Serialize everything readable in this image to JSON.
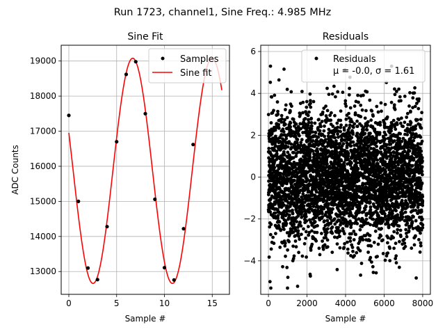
{
  "figure": {
    "suptitle": "Run 1723, channel1, Sine Freq.: 4.985 MHz"
  },
  "chart_data": [
    {
      "type": "line",
      "title": "Sine Fit",
      "xlabel": "Sample #",
      "ylabel": "ADC Counts",
      "xlim": [
        -0.8,
        16.8
      ],
      "ylim": [
        12350,
        19450
      ],
      "grid": true,
      "xticks": [
        0,
        5,
        10,
        15
      ],
      "yticks": [
        13000,
        14000,
        15000,
        16000,
        17000,
        18000,
        19000
      ],
      "legend": {
        "placement": "top-right",
        "entries": [
          "Samples",
          "Sine fit"
        ]
      },
      "colors": {
        "samples": "#000000",
        "fit": "#ff0000"
      },
      "series": [
        {
          "name": "Samples",
          "kind": "scatter",
          "x": [
            0,
            1,
            2,
            3,
            4,
            5,
            6,
            7,
            8,
            9,
            10,
            11,
            12,
            13
          ],
          "y": [
            17450,
            15000,
            13100,
            12770,
            14280,
            16700,
            18620,
            18980,
            17500,
            15060,
            13110,
            12760,
            14220,
            16620
          ]
        },
        {
          "name": "Sine fit",
          "kind": "line",
          "model": {
            "offset": 15870,
            "amplitude": 3210,
            "period": 8.3,
            "phase_sample": 6.68
          },
          "x_range": [
            0,
            16
          ]
        }
      ]
    },
    {
      "type": "scatter",
      "title": "Residuals",
      "xlabel": "Sample #",
      "ylabel": "",
      "xlim": [
        -400,
        8400
      ],
      "ylim": [
        -5.6,
        6.3
      ],
      "grid": true,
      "xticks": [
        0,
        2000,
        4000,
        6000,
        8000
      ],
      "yticks": [
        -4,
        -2,
        0,
        2,
        4,
        6
      ],
      "legend": {
        "placement": "top-right",
        "entries": [
          "Residuals",
          "μ = -0.0, σ = 1.61"
        ]
      },
      "colors": {
        "points": "#000000"
      },
      "series": [
        {
          "name": "Residuals",
          "n_points": 8000,
          "x_range": [
            0,
            8000
          ],
          "mean": -0.0,
          "std": 1.61,
          "min": -5.3,
          "max": 5.3
        }
      ]
    }
  ]
}
